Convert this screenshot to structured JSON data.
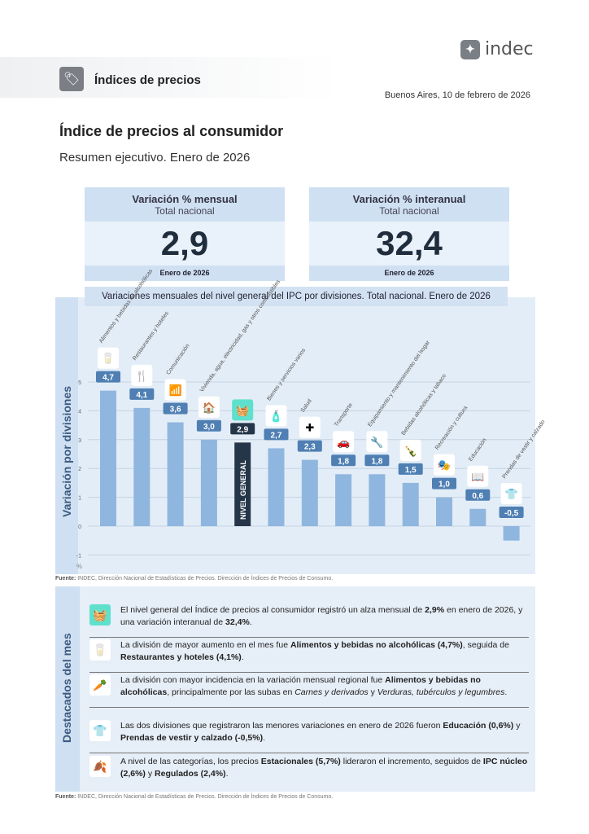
{
  "header": {
    "logo": "indec",
    "section": "Índices de precios",
    "date": "Buenos Aires, 10 de febrero de 2026"
  },
  "title": "Índice de precios al consumidor",
  "subtitle": "Resumen ejecutivo. Enero de 2026",
  "cards": [
    {
      "title": "Variación % mensual",
      "sub": "Total nacional",
      "value": "2,9",
      "footer": "Enero de 2026"
    },
    {
      "title": "Variación % interanual",
      "sub": "Total nacional",
      "value": "32,4",
      "footer": "Enero de 2026"
    }
  ],
  "chart_data": {
    "type": "bar",
    "title": "Variaciones mensuales del nivel general del IPC por divisiones. Total nacional. Enero de 2026",
    "ylabel": "Variación por divisiones",
    "yunit": "%",
    "ylim": [
      -1,
      5.5
    ],
    "yticks": [
      "-1",
      "0",
      "1",
      "2",
      "3",
      "4",
      "5"
    ],
    "categories": [
      "Alimentos y bebidas no alcohólicas",
      "Restaurantes y hoteles",
      "Comunicación",
      "Vivienda, agua, electricidad, gas y otros combustibles",
      "Nivel general",
      "Bienes y servicios varios",
      "Salud",
      "Transporte",
      "Equipamiento y mantenimiento del hogar",
      "Bebidas alcohólicas y tabaco",
      "Recreación y cultura",
      "Educación",
      "Prendas de vestir y calzado"
    ],
    "values": [
      4.7,
      4.1,
      3.6,
      3.0,
      2.9,
      2.7,
      2.3,
      1.8,
      1.8,
      1.5,
      1.0,
      0.6,
      -0.5
    ],
    "labels": [
      "4,7",
      "4,1",
      "3,6",
      "3,0",
      "2,9",
      "2,7",
      "2,3",
      "1,8",
      "1,8",
      "1,5",
      "1,0",
      "0,6",
      "-0,5"
    ],
    "highlight_label": "NIVEL GENERAL",
    "colors": {
      "bar": "#8fb6df",
      "general": "#253649",
      "label": "#4f7fb3",
      "general_label": "#253649"
    }
  },
  "source": {
    "label": "Fuente:",
    "text": " INDEC, Dirección Nacional de Estadísticas de Precios. Dirección de Índices de Precios de Consumo."
  },
  "highlights": {
    "title": "Destacados del mes",
    "items": [
      [
        {
          "t": "El nivel general del Índice de precios al consumidor registró un alza mensual de "
        },
        {
          "t": "2,9%",
          "b": 1
        },
        {
          "t": " en enero de 2026, y una variación interanual de "
        },
        {
          "t": "32,4%",
          "b": 1
        },
        {
          "t": "."
        }
      ],
      [
        {
          "t": "La división de mayor aumento en el mes fue "
        },
        {
          "t": "Alimentos y bebidas no alcohólicas (4,7%)",
          "b": 1
        },
        {
          "t": ", seguida de "
        },
        {
          "t": "Restaurantes y hoteles (4,1%)",
          "b": 1
        },
        {
          "t": "."
        }
      ],
      [
        {
          "t": "La división con mayor incidencia en la variación mensual regional fue "
        },
        {
          "t": "Alimentos y bebidas no alcohólicas",
          "b": 1
        },
        {
          "t": ", principalmente por las subas en "
        },
        {
          "t": "Carnes y derivados",
          "i": 1
        },
        {
          "t": " y "
        },
        {
          "t": "Verduras, tubérculos y legumbres",
          "i": 1
        },
        {
          "t": "."
        }
      ],
      [
        {
          "t": "Las dos divisiones que registraron las menores variaciones en enero de 2026 fueron "
        },
        {
          "t": "Educación (0,6%)",
          "b": 1
        },
        {
          "t": " y "
        },
        {
          "t": "Prendas de vestir y calzado (-0,5%)",
          "b": 1
        },
        {
          "t": "."
        }
      ],
      [
        {
          "t": "A nivel de las categorías, los precios "
        },
        {
          "t": "Estacionales (5,7%)",
          "b": 1
        },
        {
          "t": " lideraron el incremento, seguidos de "
        },
        {
          "t": "IPC núcleo (2,6%)",
          "b": 1
        },
        {
          "t": " y "
        },
        {
          "t": "Regulados (2,4%)",
          "b": 1
        },
        {
          "t": "."
        }
      ]
    ]
  }
}
